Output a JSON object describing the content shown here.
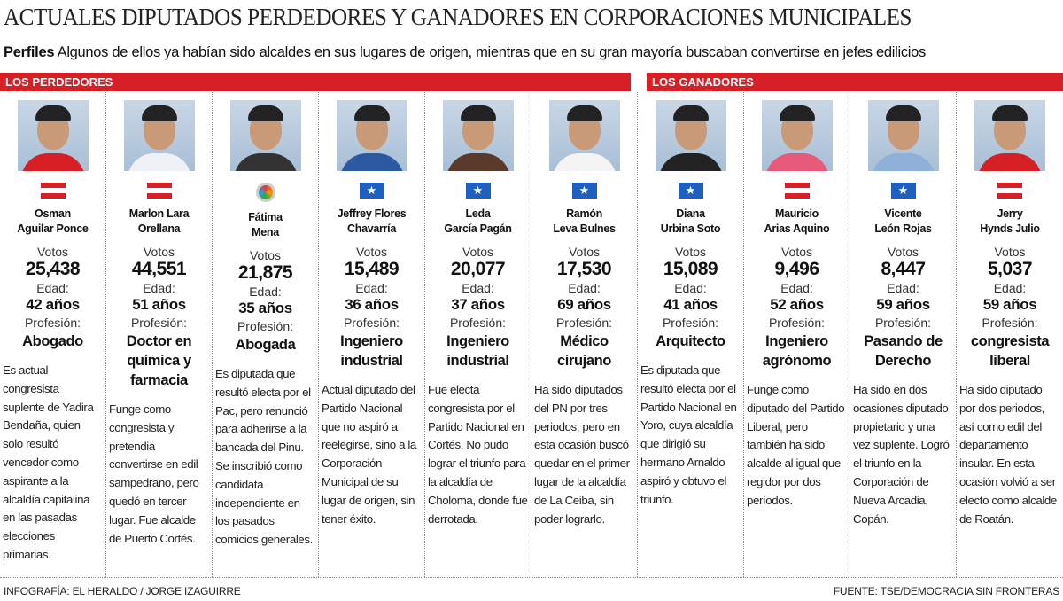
{
  "title": "ACTUALES DIPUTADOS PERDEDORES Y GANADORES EN CORPORACIONES MUNICIPALES",
  "subtitle_bold": "Perfiles",
  "subtitle": "Algunos de ellos ya habían sido alcaldes en sus lugares de origen, mientras que en su gran mayoría buscaban convertirse en jefes edilicios",
  "sections": {
    "losers": "LOS PERDEDORES",
    "winners": "LOS GANADORES"
  },
  "labels": {
    "votes": "Votos",
    "age": "Edad:",
    "profession": "Profesión:"
  },
  "colors": {
    "accent": "#d71f26",
    "liberal": "#d71f26",
    "nacional": "#1f5fbf"
  },
  "people": [
    {
      "name1": "Osman",
      "name2": "Aguilar Ponce",
      "party": "liberal",
      "votes": "25,438",
      "age": "42 años",
      "profession": "Abogado",
      "desc": "Es actual congresista suplente de Yadira Bendaña, quien solo resultó vencedor como aspirante a la alcaldía capitalina en las pasadas elecciones primarias.",
      "shirt": "#d71f26"
    },
    {
      "name1": "Marlon Lara",
      "name2": "Orellana",
      "party": "liberal",
      "votes": "44,551",
      "age": "51 años",
      "profession": "Doctor en química y farmacia",
      "desc": "Funge como congresista y pretendia convertirse en edil sampedrano, pero quedó en tercer lugar. Fue alcalde de Puerto Cortés.",
      "shirt": "#eef2f6"
    },
    {
      "name1": "Fátima",
      "name2": "Mena",
      "party": "pac",
      "votes": "21,875",
      "age": "35 años",
      "profession": "Abogada",
      "desc": "Es diputada que resultó electa por el Pac, pero renunció para adherirse a la bancada del Pinu. Se inscribió como candidata independiente en los pasados comicios generales.",
      "shirt": "#333"
    },
    {
      "name1": "Jeffrey Flores",
      "name2": "Chavarría",
      "party": "nacional",
      "votes": "15,489",
      "age": "36 años",
      "profession": "Ingeniero industrial",
      "desc": "Actual diputado del Partido Nacional que no aspiró a reelegirse, sino a la Corporación Municipal de su lugar de origen, sin tener éxito.",
      "shirt": "#2c5aa0"
    },
    {
      "name1": "Leda",
      "name2": "García Pagán",
      "party": "nacional",
      "votes": "20,077",
      "age": "37 años",
      "profession": "Ingeniero industrial",
      "desc": "Fue electa congresista por el Partido Nacional en Cortés. No pudo lograr el triunfo para la alcaldía de Choloma, donde fue derrotada.",
      "shirt": "#5a3a2a"
    },
    {
      "name1": "Ramón",
      "name2": "Leva Bulnes",
      "party": "nacional",
      "votes": "17,530",
      "age": "69 años",
      "profession": "Médico cirujano",
      "desc": "Ha sido diputados del PN por tres periodos, pero en esta ocasión buscó quedar en el primer lugar de la alcaldía de La Ceiba, sin poder lograrlo.",
      "shirt": "#f4f4f4"
    },
    {
      "name1": "Diana",
      "name2": "Urbina Soto",
      "party": "nacional",
      "votes": "15,089",
      "age": "41 años",
      "profession": "Arquitecto",
      "desc": "Es diputada que resultó electa por el Partido Nacional en Yoro, cuya alcaldía que dirigió su hermano Arnaldo aspiró y obtuvo el triunfo.",
      "shirt": "#222"
    },
    {
      "name1": "Mauricio",
      "name2": "Arias Aquino",
      "party": "liberal",
      "votes": "9,496",
      "age": "52 años",
      "profession": "Ingeniero agrónomo",
      "desc": "Funge como diputado del Partido Liberal, pero también ha sido alcalde al igual que regidor por dos períodos.",
      "shirt": "#e85a7a"
    },
    {
      "name1": "Vicente",
      "name2": "León Rojas",
      "party": "nacional",
      "votes": "8,447",
      "age": "59 años",
      "profession": "Pasando de Derecho",
      "desc": "Ha sido en dos ocasiones diputado propietario y una vez suplente. Logró el triunfo en la Corporación de Nueva Arcadia, Copán.",
      "shirt": "#8fb0d8"
    },
    {
      "name1": "Jerry",
      "name2": "Hynds Julio",
      "party": "liberal",
      "votes": "5,037",
      "age": "59 años",
      "profession": "congresista liberal",
      "desc": "Ha sido diputado por dos periodos, así como edil del departamento insular. En esta ocasión volvió a ser electo como alcalde de Roatán.",
      "shirt": "#d71f26"
    }
  ],
  "footer": {
    "credit": "INFOGRAFÍA: EL HERALDO / JORGE IZAGUIRRE",
    "source": "FUENTE: TSE/DEMOCRACIA SIN FRONTERAS"
  }
}
